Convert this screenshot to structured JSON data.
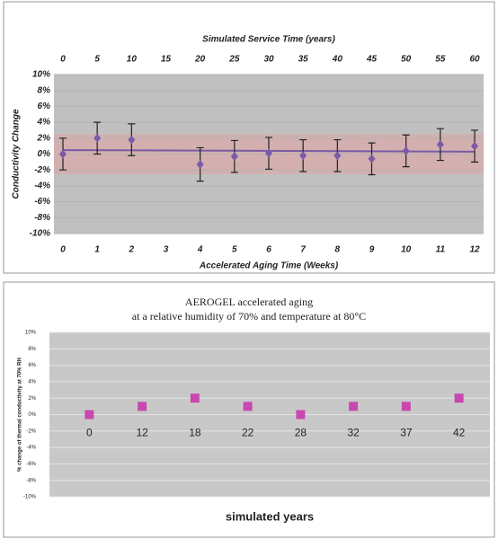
{
  "chart_data": [
    {
      "type": "scatter",
      "x2label": "Simulated Service Time (years)",
      "xlabel": "Accelerated Aging Time (Weeks)",
      "ylabel": "Conductivity Change",
      "x": [
        0,
        1,
        2,
        4,
        5,
        6,
        7,
        8,
        9,
        10,
        11,
        12
      ],
      "values": [
        0,
        2,
        1.8,
        -1.3,
        -0.3,
        0.1,
        -0.2,
        -0.2,
        -0.6,
        0.4,
        1.2,
        1
      ],
      "errors": [
        2,
        2,
        2,
        2.1,
        2,
        2,
        2,
        2,
        2,
        2,
        2,
        2
      ],
      "color": "#7b5aa6",
      "trend": {
        "x": [
          0,
          12
        ],
        "values": [
          0.5,
          0.3
        ]
      },
      "band": [
        -2.5,
        2.5
      ],
      "band_color": "#d9a9a9",
      "xlim": [
        0,
        12
      ],
      "xticks": [
        0,
        1,
        2,
        3,
        4,
        5,
        6,
        7,
        8,
        9,
        10,
        11,
        12
      ],
      "x2lim": [
        0,
        60
      ],
      "x2ticks": [
        0,
        5,
        10,
        15,
        20,
        25,
        30,
        35,
        40,
        45,
        50,
        55,
        60
      ],
      "ylim": [
        -10,
        10
      ],
      "yticks": [
        {
          "value": 10,
          "label": "10%"
        },
        {
          "value": 8,
          "label": "8%"
        },
        {
          "value": 6,
          "label": "6%"
        },
        {
          "value": 4,
          "label": "4%"
        },
        {
          "value": 2,
          "label": "2%"
        },
        {
          "value": 0,
          "label": "0%"
        },
        {
          "value": -2,
          "label": "-2%"
        },
        {
          "value": -4,
          "label": "-4%"
        },
        {
          "value": -6,
          "label": "-6%"
        },
        {
          "value": -8,
          "label": "-8%"
        },
        {
          "value": -10,
          "label": "-10%"
        }
      ],
      "grid": true
    },
    {
      "type": "scatter",
      "title": "AEROGEL accelerated aging",
      "subtitle": "at a relative humidity of 70% and temperature at 80°C",
      "xlabel": "simulated years",
      "ylabel": "% change of thermal conductivity at 70% RH",
      "categories": [
        "0",
        "12",
        "18",
        "22",
        "28",
        "32",
        "37",
        "42"
      ],
      "values": [
        0,
        1,
        2,
        1,
        0,
        1,
        1,
        2
      ],
      "color": "#c848b0",
      "ylim": [
        -10,
        10
      ],
      "yticks": [
        {
          "value": 10,
          "label": "10%"
        },
        {
          "value": 8,
          "label": "8%"
        },
        {
          "value": 6,
          "label": "6%"
        },
        {
          "value": 4,
          "label": "4%"
        },
        {
          "value": 2,
          "label": "2%"
        },
        {
          "value": 0,
          "label": "0%"
        },
        {
          "value": -2,
          "label": "-2%"
        },
        {
          "value": -4,
          "label": "-4%"
        },
        {
          "value": -6,
          "label": "-6%"
        },
        {
          "value": -8,
          "label": "-8%"
        },
        {
          "value": -10,
          "label": "-10%"
        }
      ],
      "grid": true
    }
  ]
}
